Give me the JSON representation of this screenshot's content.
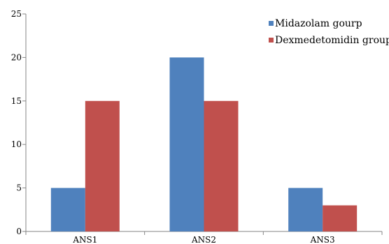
{
  "chart_data": {
    "type": "bar",
    "title": "",
    "xlabel": "",
    "ylabel": "",
    "categories": [
      "ANS1",
      "ANS2",
      "ANS3"
    ],
    "ylim": [
      0,
      25
    ],
    "yticks": [
      0,
      5,
      10,
      15,
      20,
      25
    ],
    "grid": false,
    "legend_position": "top-right",
    "series": [
      {
        "name": "Midazolam gourp",
        "values": [
          5,
          20,
          5
        ],
        "color": "#4f81bd"
      },
      {
        "name": "Dexmedetomidin group",
        "values": [
          15,
          15,
          3
        ],
        "color": "#c0504d"
      }
    ]
  }
}
